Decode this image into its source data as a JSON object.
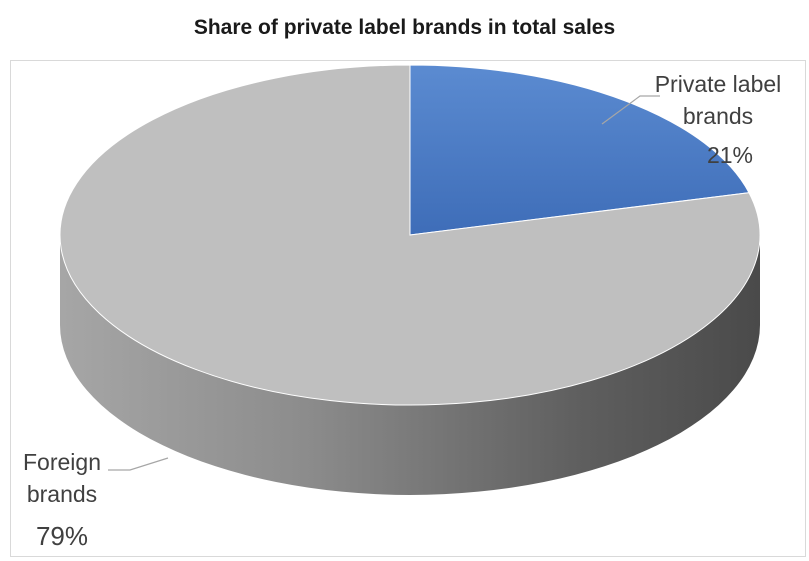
{
  "chart_data": {
    "type": "pie",
    "title": "Share of private label brands in total sales",
    "slices": [
      {
        "name": "Private label brands",
        "label_lines": [
          "Private label",
          "brands"
        ],
        "value": 21,
        "value_label": "21%",
        "color": "#4472c4"
      },
      {
        "name": "Foreign brands",
        "label_lines": [
          "Foreign",
          "brands"
        ],
        "value": 79,
        "value_label": "79%",
        "color": "#bfbfbf"
      }
    ],
    "style": "3d-pie",
    "start": "12 o'clock, clockwise",
    "legend": "none (data labels)"
  }
}
